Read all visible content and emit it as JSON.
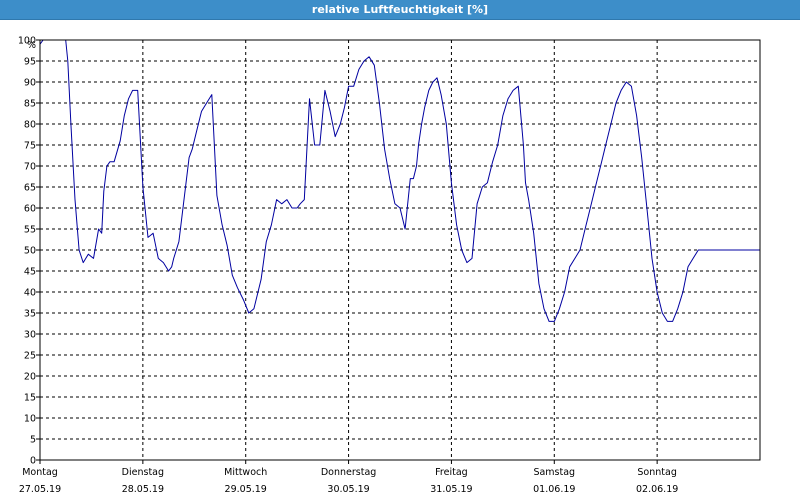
{
  "window": {
    "title": "relative Luftfeuchtigkeit [%]"
  },
  "colors": {
    "titlebar": "#3d8ec9",
    "line": "#0000a0",
    "grid": "#000000",
    "background": "#ffffff"
  },
  "chart_data": {
    "type": "line",
    "title": "relative Luftfeuchtigkeit [%]",
    "ylabel": "%",
    "xlabel": "",
    "ylim": [
      0,
      100
    ],
    "y_ticks": [
      0,
      5,
      10,
      15,
      20,
      25,
      30,
      35,
      40,
      45,
      50,
      55,
      60,
      65,
      70,
      75,
      80,
      85,
      90,
      95,
      100
    ],
    "xlim": [
      0,
      7
    ],
    "x_ticks": [
      {
        "x": 0,
        "day": "Montag",
        "date": "27.05.19"
      },
      {
        "x": 1,
        "day": "Dienstag",
        "date": "28.05.19"
      },
      {
        "x": 2,
        "day": "Mittwoch",
        "date": "29.05.19"
      },
      {
        "x": 3,
        "day": "Donnerstag",
        "date": "30.05.19"
      },
      {
        "x": 4,
        "day": "Freitag",
        "date": "31.05.19"
      },
      {
        "x": 5,
        "day": "Samstag",
        "date": "01.06.19"
      },
      {
        "x": 6,
        "day": "Sonntag",
        "date": "02.06.19"
      }
    ],
    "grid": true,
    "series": [
      {
        "x": [
          0,
          0.03,
          0.1,
          0.2,
          0.25,
          0.27,
          0.3,
          0.34,
          0.38,
          0.42,
          0.47,
          0.52,
          0.57,
          0.6,
          0.62,
          0.65,
          0.68,
          0.72,
          0.78,
          0.82,
          0.86,
          0.9,
          0.95,
          1.0,
          1.05,
          1.1,
          1.15,
          1.2,
          1.25,
          1.28,
          1.3,
          1.35,
          1.4,
          1.45,
          1.48,
          1.52,
          1.57,
          1.62,
          1.67,
          1.72,
          1.77,
          1.82,
          1.87,
          1.92,
          1.98,
          2.03,
          2.08,
          2.15,
          2.2,
          2.25,
          2.3,
          2.35,
          2.4,
          2.45,
          2.5,
          2.53,
          2.57,
          2.62,
          2.67,
          2.72,
          2.77,
          2.82,
          2.87,
          2.92,
          2.96,
          3.0,
          3.05,
          3.1,
          3.15,
          3.2,
          3.25,
          3.3,
          3.35,
          3.4,
          3.45,
          3.5,
          3.55,
          3.6,
          3.63,
          3.66,
          3.68,
          3.71,
          3.74,
          3.78,
          3.82,
          3.86,
          3.9,
          3.95,
          4.0,
          4.05,
          4.1,
          4.15,
          4.2,
          4.25,
          4.3,
          4.35,
          4.4,
          4.45,
          4.5,
          4.55,
          4.6,
          4.65,
          4.7,
          4.72,
          4.75,
          4.8,
          4.85,
          4.9,
          4.95,
          5.0,
          5.05,
          5.1,
          5.15,
          5.2,
          5.25,
          5.3,
          5.35,
          5.4,
          5.45,
          5.5,
          5.55,
          5.6,
          5.65,
          5.7,
          5.75,
          5.8,
          5.85,
          5.9,
          5.95,
          6.0,
          6.05,
          6.1,
          6.15,
          6.2,
          6.25,
          6.3,
          6.35,
          6.4,
          6.45,
          6.5,
          6.55,
          6.6,
          6.65,
          6.7,
          6.75,
          6.8,
          6.85,
          6.9,
          6.95,
          7.0
        ],
        "values": [
          99,
          100,
          100,
          100,
          100,
          95,
          80,
          62,
          50,
          47,
          49,
          48,
          55,
          54,
          64,
          70,
          71,
          71,
          76,
          82,
          86,
          88,
          88,
          65,
          53,
          54,
          48,
          47,
          45,
          46,
          48,
          52,
          62,
          72,
          74,
          78,
          83,
          85,
          87,
          63,
          56,
          51,
          44,
          41,
          38,
          35,
          36,
          43,
          52,
          56,
          62,
          61,
          62,
          60,
          60,
          61,
          62,
          86,
          75,
          75,
          88,
          83,
          77,
          80,
          84,
          89,
          89,
          93,
          95,
          96,
          94,
          85,
          74,
          67,
          61,
          60,
          55,
          67,
          67,
          70,
          75,
          80,
          84,
          88,
          90,
          91,
          87,
          80,
          66,
          56,
          50,
          47,
          48,
          61,
          65,
          66,
          71,
          75,
          82,
          86,
          88,
          89,
          75,
          66,
          62,
          54,
          42,
          36,
          33,
          33,
          36,
          40,
          46,
          48,
          50,
          55,
          60,
          65,
          70,
          75,
          80,
          85,
          88,
          90,
          89,
          82,
          72,
          60,
          48,
          40,
          35,
          33,
          33,
          36,
          40,
          46,
          48,
          50,
          50,
          50,
          50,
          50,
          50,
          50,
          50,
          50,
          50,
          50,
          50,
          50
        ]
      }
    ]
  }
}
